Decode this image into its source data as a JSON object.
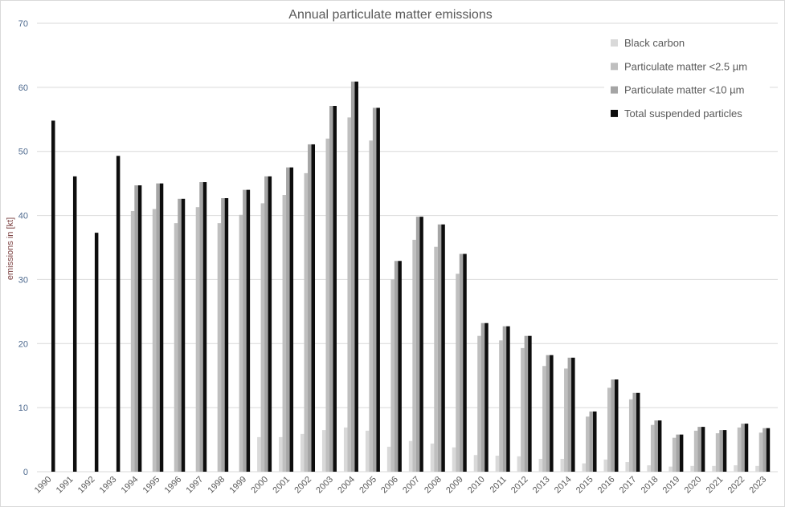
{
  "chart_data": {
    "type": "bar",
    "title": "Annual particulate matter emissions",
    "xlabel": "",
    "ylabel": "emissions in [kt]",
    "ylim": [
      0,
      70
    ],
    "yticks": [
      0,
      10,
      20,
      30,
      40,
      50,
      60,
      70
    ],
    "grid": true,
    "legend_position": "top-right",
    "categories": [
      "1990",
      "1991",
      "1992",
      "1993",
      "1994",
      "1995",
      "1996",
      "1997",
      "1998",
      "1999",
      "2000",
      "2001",
      "2002",
      "2003",
      "2004",
      "2005",
      "2006",
      "2007",
      "2008",
      "2009",
      "2010",
      "2011",
      "2012",
      "2013",
      "2014",
      "2015",
      "2016",
      "2017",
      "2018",
      "2019",
      "2020",
      "2021",
      "2022",
      "2023"
    ],
    "series": [
      {
        "name": "Black carbon",
        "color": "#d9d9d9",
        "values": [
          null,
          null,
          null,
          null,
          null,
          null,
          null,
          null,
          null,
          null,
          5.4,
          5.4,
          5.9,
          6.5,
          6.9,
          6.4,
          3.9,
          4.8,
          4.4,
          3.8,
          2.6,
          2.5,
          2.4,
          2.0,
          2.0,
          1.3,
          1.9,
          1.5,
          1.0,
          0.8,
          0.9,
          0.9,
          1.0,
          0.9
        ]
      },
      {
        "name": "Particulate matter <2.5 µm",
        "color": "#bfbfbf",
        "values": [
          null,
          null,
          null,
          null,
          40.7,
          41.0,
          38.8,
          41.3,
          38.8,
          40.1,
          41.9,
          43.2,
          46.6,
          52.0,
          55.3,
          51.7,
          30.0,
          36.2,
          35.1,
          30.9,
          21.2,
          20.5,
          19.3,
          16.5,
          16.1,
          8.6,
          13.1,
          11.3,
          7.3,
          5.3,
          6.4,
          6.0,
          6.9,
          6.1
        ]
      },
      {
        "name": "Particulate matter <10 µm",
        "color": "#a5a5a5",
        "values": [
          null,
          null,
          null,
          null,
          44.7,
          45.0,
          42.6,
          45.2,
          42.7,
          44.0,
          46.1,
          47.5,
          51.1,
          57.1,
          60.9,
          56.8,
          32.9,
          39.8,
          38.6,
          34.0,
          23.2,
          22.7,
          21.2,
          18.2,
          17.8,
          9.4,
          14.4,
          12.3,
          8.0,
          5.8,
          7.0,
          6.5,
          7.5,
          6.8
        ]
      },
      {
        "name": "Total suspended particles",
        "color": "#0d0d0d",
        "values": [
          54.8,
          46.1,
          37.3,
          49.3,
          44.7,
          45.0,
          42.6,
          45.2,
          42.7,
          44.0,
          46.1,
          47.5,
          51.1,
          57.1,
          60.9,
          56.8,
          32.9,
          39.8,
          38.6,
          34.0,
          23.2,
          22.7,
          21.2,
          18.2,
          17.8,
          9.4,
          14.4,
          12.3,
          8.0,
          5.8,
          7.0,
          6.5,
          7.5,
          6.8
        ]
      }
    ]
  }
}
